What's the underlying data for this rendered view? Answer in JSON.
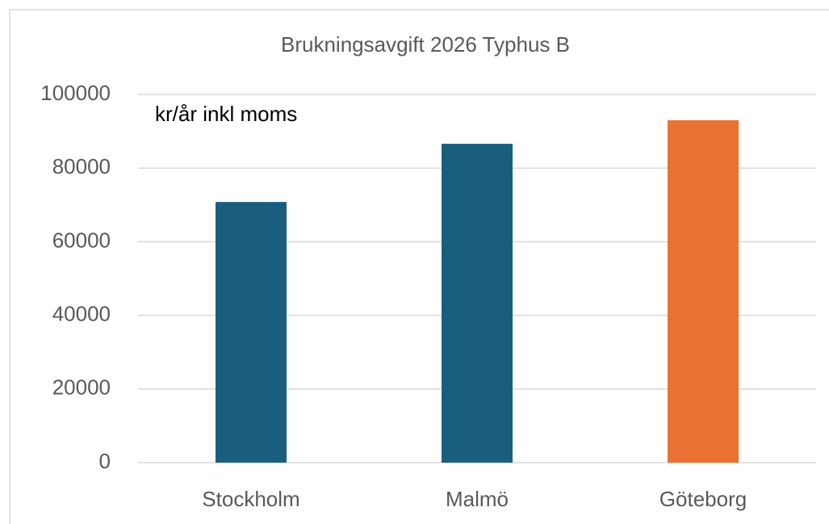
{
  "chart_data": {
    "type": "bar",
    "title": "Brukningsavgift 2026 Typhus B",
    "annotation": "kr/år inkl moms",
    "categories": [
      "Stockholm",
      "Malmö",
      "Göteborg"
    ],
    "values": [
      70800,
      86600,
      93000
    ],
    "colors": [
      "#1a5e7e",
      "#1a5e7e",
      "#e97132"
    ],
    "ylim": [
      0,
      100000
    ],
    "yticks": [
      0,
      20000,
      40000,
      60000,
      80000,
      100000
    ],
    "grid": true
  }
}
